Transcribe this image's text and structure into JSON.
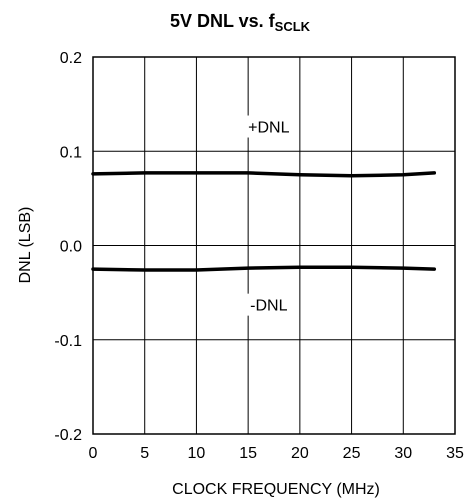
{
  "chart_data": {
    "type": "line",
    "title_main": "5V DNL vs. f",
    "title_sub": "SCLK",
    "xlabel": "CLOCK FREQUENCY (MHz)",
    "ylabel": "DNL (LSB)",
    "xlim": [
      0,
      35
    ],
    "ylim": [
      -0.2,
      0.2
    ],
    "x_ticks": [
      0,
      5,
      10,
      15,
      20,
      25,
      30,
      35
    ],
    "x_tick_labels": [
      "0",
      "5",
      "10",
      "15",
      "20",
      "25",
      "30",
      "35"
    ],
    "y_ticks": [
      -0.2,
      -0.1,
      0.0,
      0.1,
      0.2
    ],
    "y_tick_labels": [
      "-0.2",
      "-0.1",
      "0.0",
      "0.1",
      "0.2"
    ],
    "grid": true,
    "series": [
      {
        "name": "+DNL",
        "x": [
          0,
          5,
          10,
          15,
          20,
          25,
          30,
          33
        ],
        "y": [
          0.076,
          0.077,
          0.077,
          0.077,
          0.075,
          0.074,
          0.075,
          0.077
        ]
      },
      {
        "name": "-DNL",
        "x": [
          0,
          5,
          10,
          15,
          20,
          25,
          30,
          33
        ],
        "y": [
          -0.025,
          -0.026,
          -0.026,
          -0.024,
          -0.023,
          -0.023,
          -0.024,
          -0.025
        ]
      }
    ],
    "annotations": [
      {
        "text": "+DNL",
        "x": 17,
        "y": 0.122
      },
      {
        "text": "-DNL",
        "x": 17,
        "y": -0.067
      }
    ]
  }
}
